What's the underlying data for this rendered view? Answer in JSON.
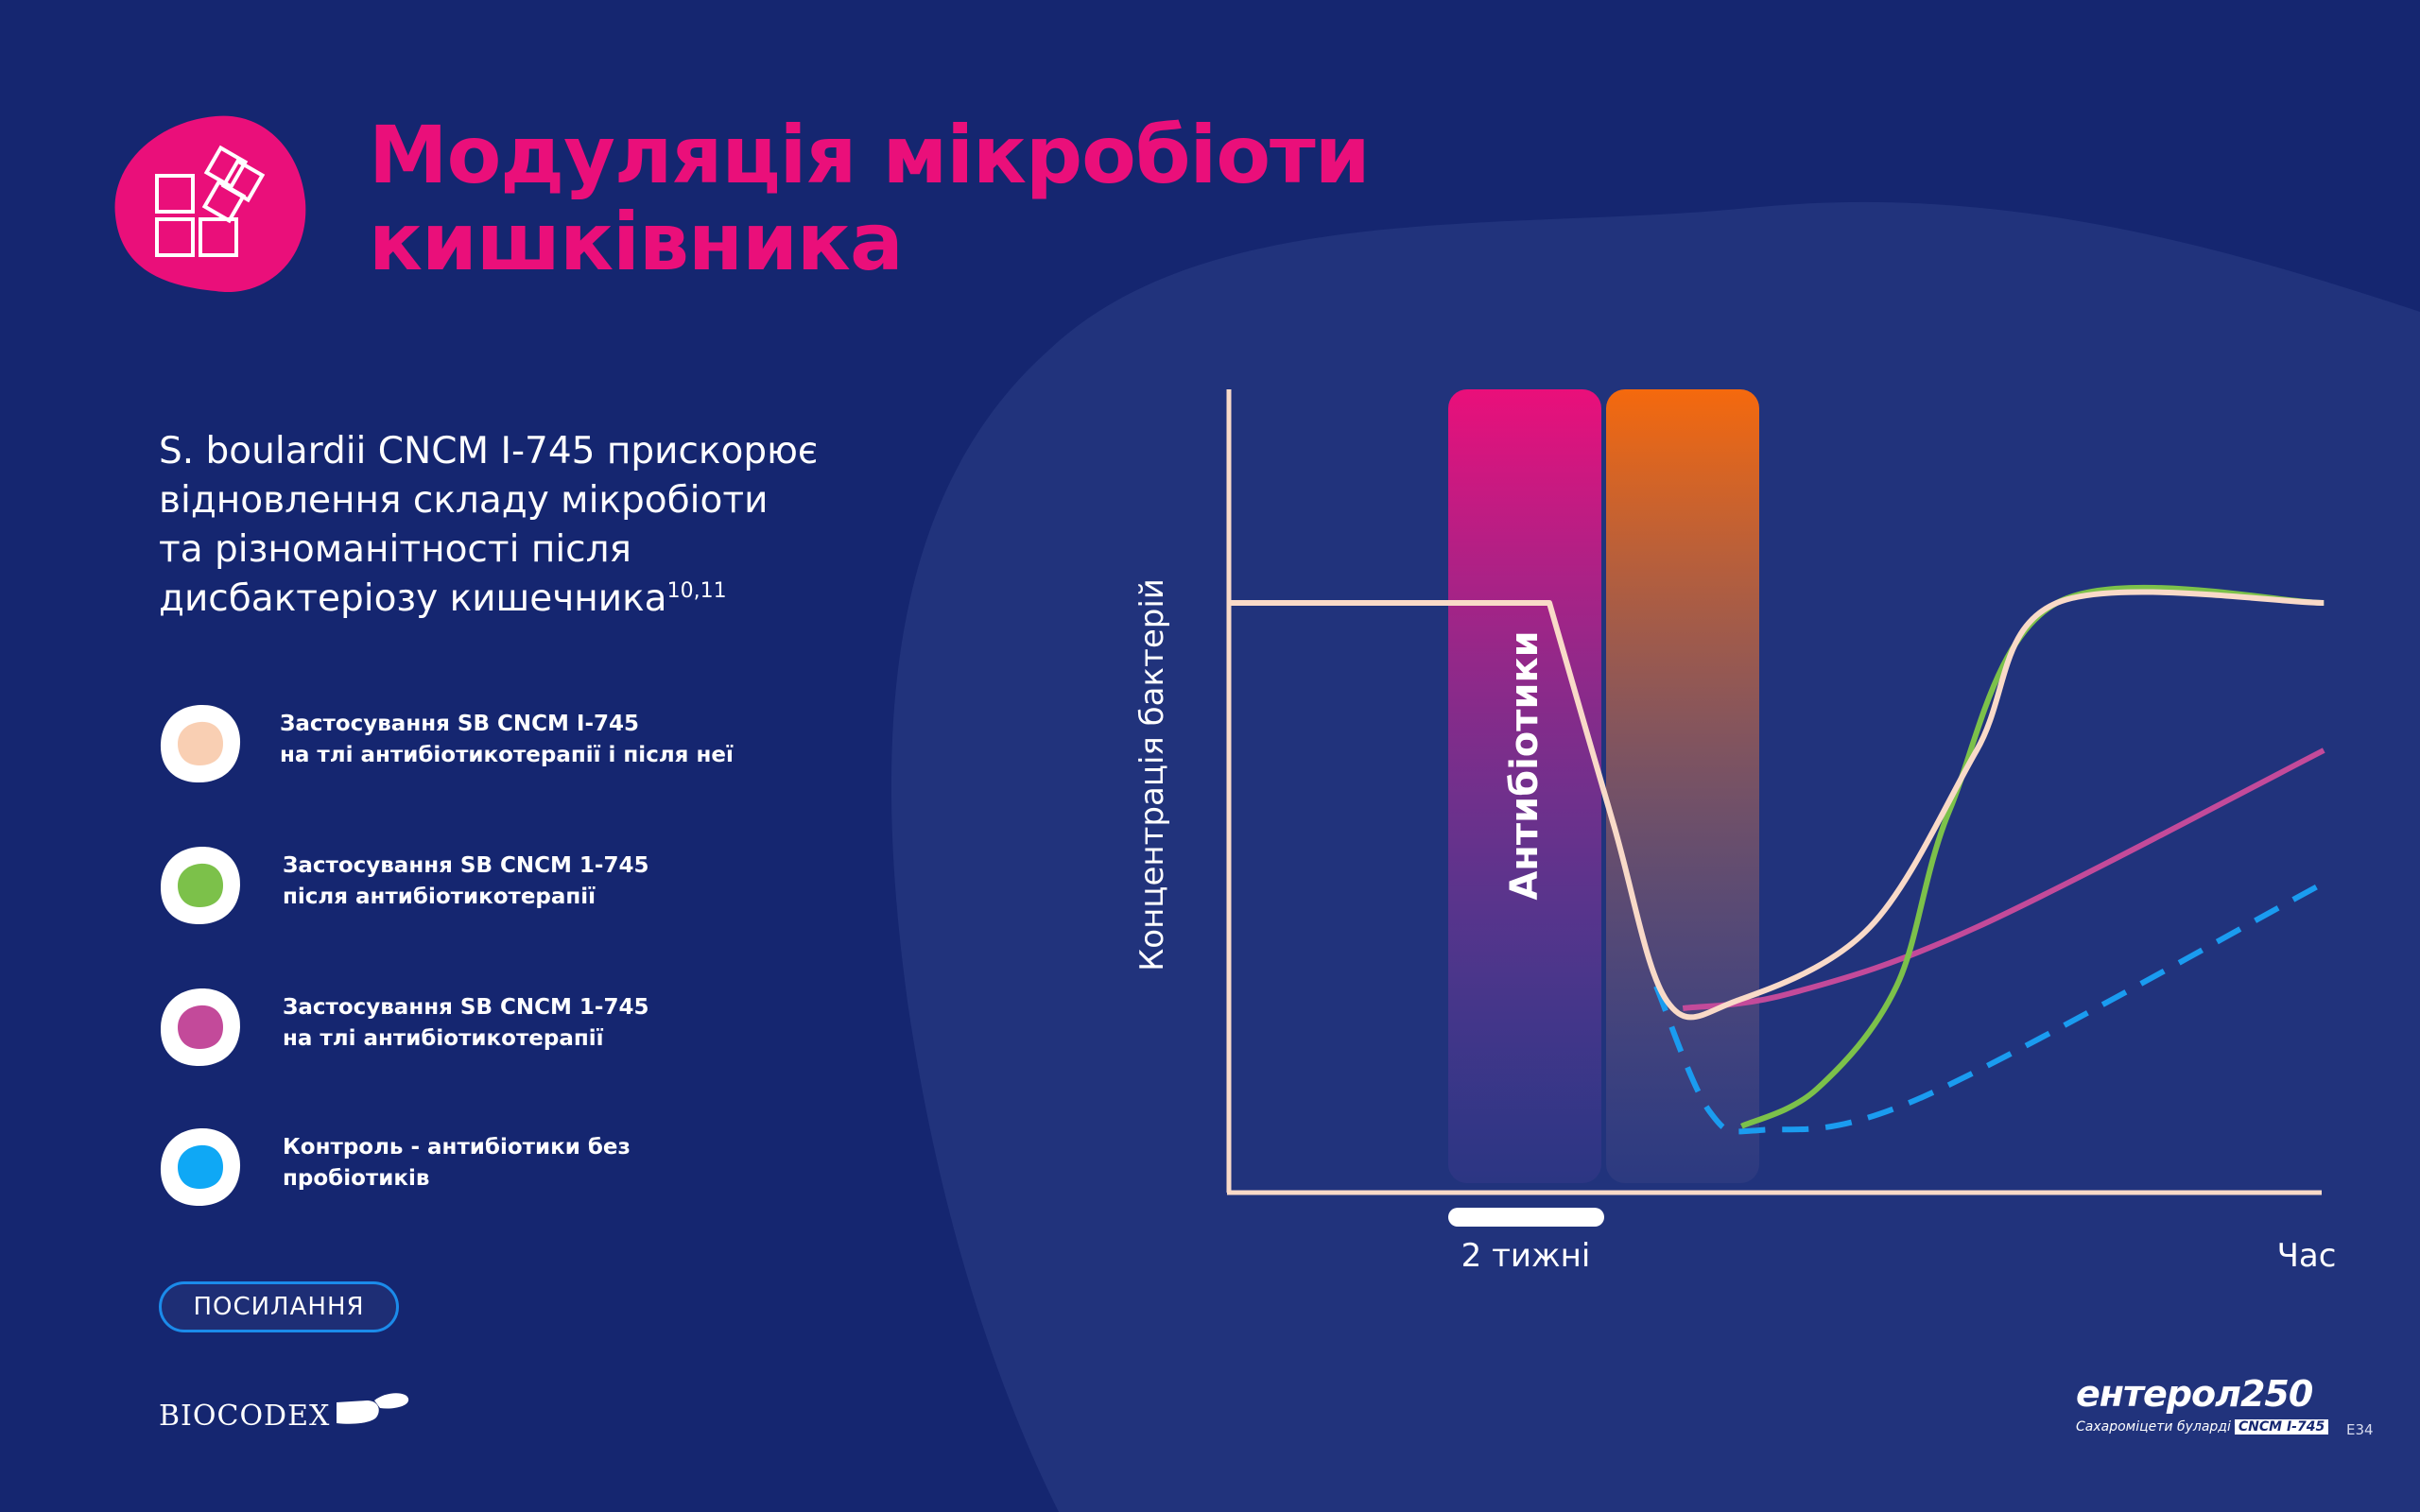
{
  "page": {
    "title_lines": [
      "Модуляція мікробіоти",
      "кишківника"
    ],
    "accent_color": "#ea0f7a",
    "background_color": "#152670",
    "title_icon": "cubes-icon"
  },
  "intro": {
    "lines": [
      "S. boulardii CNCM I-745 прискорює",
      "відновлення складу мікробіоти",
      "та різноманітності після",
      "дисбактеріозу кишечника"
    ],
    "superscript": "10,11"
  },
  "legend": [
    {
      "line1": "Застосування SB CNCM I-745",
      "line2": "на тлі антибіотикотерапії і після неї",
      "color": "#f9cfb3"
    },
    {
      "line1": "Застосування SB CNCM 1-745",
      "line2": "після антибіотикотерапії",
      "color": "#7cc14a"
    },
    {
      "line1": "Застосування SB CNCM 1-745",
      "line2": "на тлі антибіотикотерапії",
      "color": "#c34a9a"
    },
    {
      "line1": "Контроль - антибіотики без",
      "line2": "пробіотиків",
      "color": "#1a9cf0"
    }
  ],
  "references_button": "ПОСИЛАННЯ",
  "footer": {
    "biocodex_logo": "BIOCODEX",
    "product_name": "ентерол250",
    "product_subtitle": "Сахароміцети буларді",
    "product_strain": "CNCM I-745",
    "slide_code": "E34"
  },
  "chart_data": {
    "type": "line",
    "ylabel": "Концентрація бактерій",
    "xlabel": "Час",
    "x_marker_label": "2 тижні",
    "band_label": "Антибіотики",
    "band_colors": [
      "#ea0f7a",
      "#f5690d"
    ],
    "series": [
      {
        "color": "#f9dac8",
        "style": "solid",
        "points": [
          [
            0,
            80
          ],
          [
            6,
            80
          ],
          [
            7.2,
            50
          ],
          [
            8.2,
            26
          ],
          [
            9.5,
            26
          ],
          [
            12,
            36
          ],
          [
            14,
            60
          ],
          [
            15.5,
            80
          ],
          [
            20.5,
            80
          ]
        ]
      },
      {
        "color": "#7cc14a",
        "style": "solid",
        "points": [
          [
            9.6,
            9
          ],
          [
            11,
            14
          ],
          [
            12.5,
            28
          ],
          [
            13.5,
            52
          ],
          [
            15.5,
            80
          ],
          [
            20.5,
            80
          ]
        ]
      },
      {
        "color": "#c34a9a",
        "style": "solid",
        "points": [
          [
            8.5,
            25
          ],
          [
            10.5,
            27
          ],
          [
            14,
            36
          ],
          [
            20.5,
            60
          ]
        ]
      },
      {
        "color": "#1a9cf0",
        "style": "dashed",
        "points": [
          [
            8,
            28
          ],
          [
            9,
            11
          ],
          [
            10,
            8.5
          ],
          [
            13,
            13
          ],
          [
            20.5,
            42
          ]
        ]
      }
    ]
  }
}
